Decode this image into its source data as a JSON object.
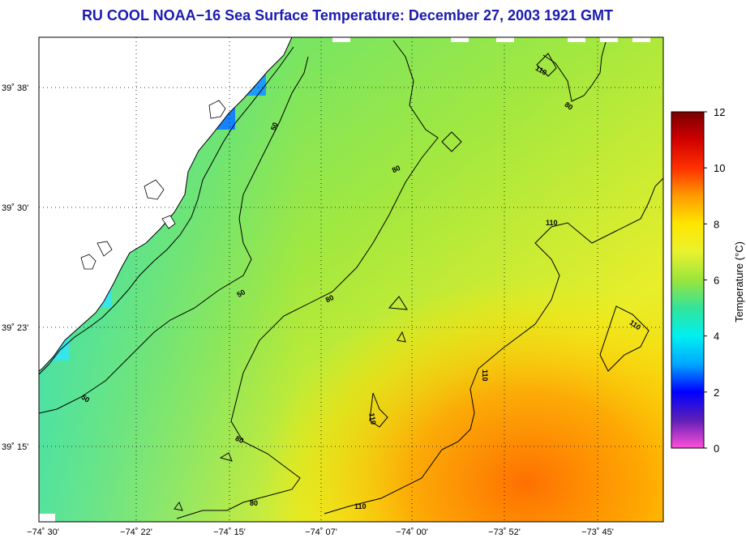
{
  "title": "RU COOL  NOAA−16  Sea Surface Temperature:  December 27, 2003 1921 GMT",
  "map": {
    "lat_ticks": [
      "39˚ 38'",
      "39˚ 30'",
      "39˚ 23'",
      "39˚ 15'"
    ],
    "lon_ticks": [
      "−74˚ 30'",
      "−74˚ 22'",
      "−74˚ 15'",
      "−74˚ 07'",
      "−74˚ 00'",
      "−73˚ 52'",
      "−73˚ 45'"
    ],
    "contour_labels": [
      "50",
      "50",
      "50",
      "80",
      "80",
      "80",
      "80",
      "80",
      "110",
      "110",
      "110",
      "110",
      "110",
      "110"
    ],
    "land_color": "#ffffff",
    "coast_color": "#000000",
    "grid": "dotted"
  },
  "colorbar": {
    "label": "Temperature (°C)",
    "min": 0,
    "max": 12,
    "ticks": [
      "12",
      "10",
      "8",
      "6",
      "4",
      "2",
      "0"
    ],
    "colors": [
      "#ff4fd8",
      "#5f1fb8",
      "#0000ff",
      "#00a8ff",
      "#00f0f0",
      "#33e39a",
      "#9be53c",
      "#e8f22e",
      "#ffe600",
      "#ff9a00",
      "#ff3000",
      "#d00000",
      "#7a0000"
    ]
  }
}
